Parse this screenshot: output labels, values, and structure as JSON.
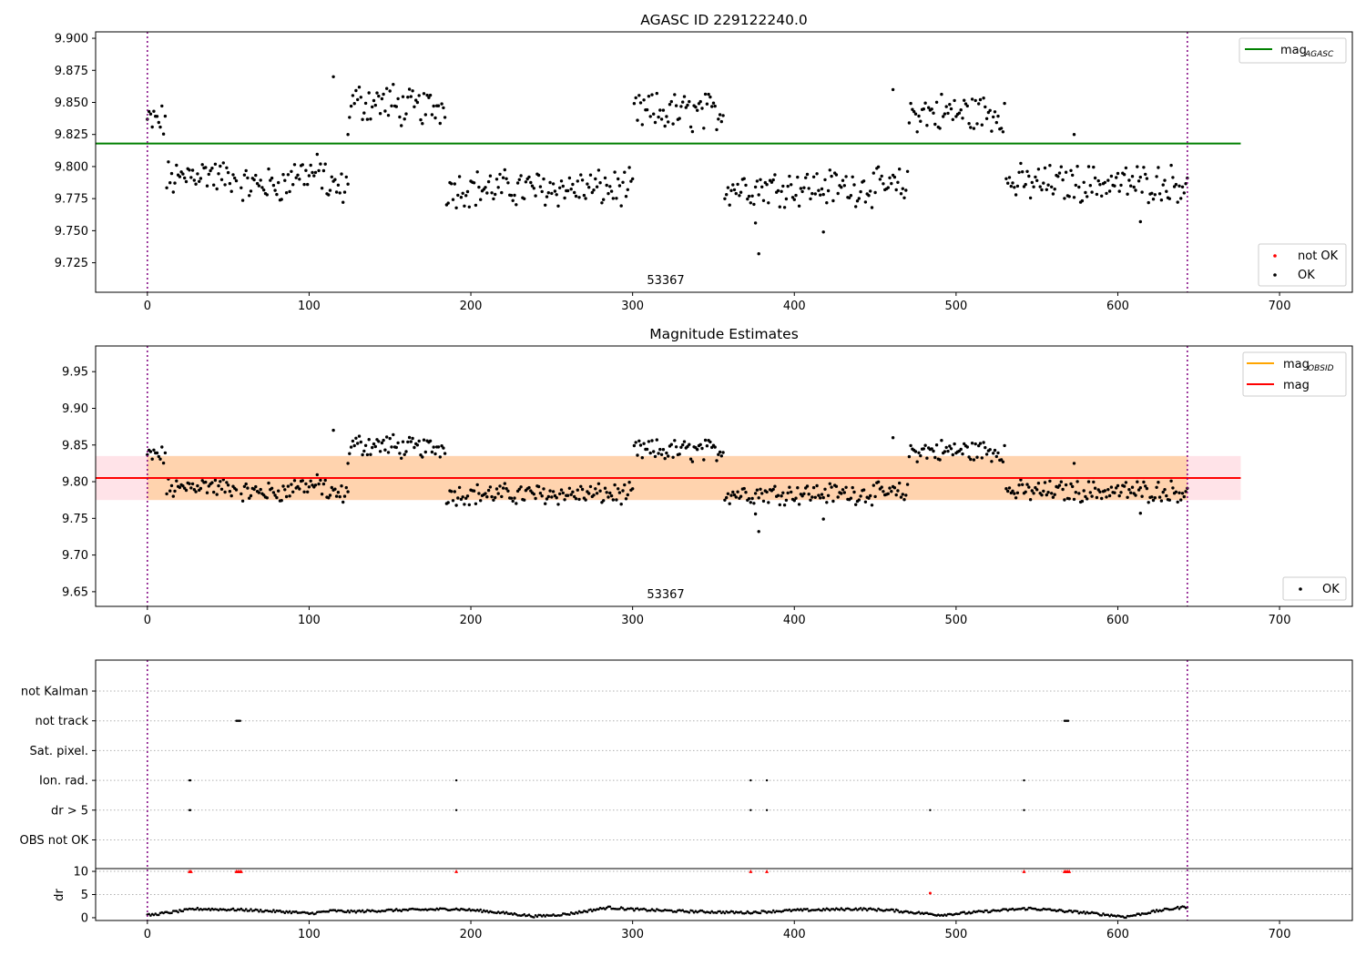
{
  "chart_data": [
    {
      "type": "scatter",
      "title": "AGASC ID 229122240.0",
      "xlim": [
        -32,
        745
      ],
      "ylim": [
        9.702,
        9.905
      ],
      "x_ticks": [
        0,
        100,
        200,
        300,
        400,
        500,
        600,
        700
      ],
      "y_ticks": [
        9.725,
        9.75,
        9.775,
        9.8,
        9.825,
        9.85,
        9.875,
        9.9
      ],
      "y_tick_labels": [
        "9.725",
        "9.750",
        "9.775",
        "9.800",
        "9.825",
        "9.850",
        "9.875",
        "9.900"
      ],
      "obsid_label": "53367",
      "obs_bounds": [
        0,
        643
      ],
      "series": [
        {
          "name": "mag_AGASC",
          "kind": "hline",
          "y": 9.818,
          "x_range": [
            -32,
            676
          ],
          "color": "#008000"
        },
        {
          "name": "not OK",
          "kind": "points",
          "color": "#ff0000",
          "points": []
        },
        {
          "name": "OK",
          "kind": "points",
          "color": "#000000",
          "segments": [
            {
              "x": [
                0,
                11
              ],
              "base": 9.835,
              "amp": 0.012
            },
            {
              "x": [
                12,
                24
              ],
              "base": 9.79,
              "amp": 0.012
            },
            {
              "x": [
                25,
                40
              ],
              "base": 9.795,
              "amp": 0.011
            },
            {
              "x": [
                41,
                55
              ],
              "base": 9.792,
              "amp": 0.011
            },
            {
              "x": [
                58,
                88
              ],
              "base": 9.786,
              "amp": 0.011
            },
            {
              "x": [
                89,
                110
              ],
              "base": 9.795,
              "amp": 0.012
            },
            {
              "x": [
                111,
                124
              ],
              "base": 9.782,
              "amp": 0.012
            },
            {
              "x": [
                125,
                152
              ],
              "base": 9.85,
              "amp": 0.013
            },
            {
              "x": [
                153,
                184
              ],
              "base": 9.846,
              "amp": 0.012
            },
            {
              "x": [
                185,
                300
              ],
              "base": 9.783,
              "amp": 0.012
            },
            {
              "x": [
                301,
                356
              ],
              "base": 9.842,
              "amp": 0.013
            },
            {
              "x": [
                357,
                470
              ],
              "base": 9.784,
              "amp": 0.012
            },
            {
              "x": [
                471,
                530
              ],
              "base": 9.842,
              "amp": 0.013
            },
            {
              "x": [
                531,
                643
              ],
              "base": 9.787,
              "amp": 0.012
            }
          ],
          "outliers": [
            [
              115,
              9.87
            ],
            [
              124,
              9.825
            ],
            [
              376,
              9.756
            ],
            [
              378,
              9.732
            ],
            [
              418,
              9.749
            ],
            [
              461,
              9.86
            ],
            [
              573,
              9.825
            ],
            [
              614,
              9.757
            ]
          ]
        }
      ],
      "legend_upper": [
        {
          "label": "mag",
          "sub": "AGASC",
          "color": "#008000"
        }
      ],
      "legend_lower": [
        {
          "label": "not OK",
          "color": "#ff0000"
        },
        {
          "label": "OK",
          "color": "#000000"
        }
      ]
    },
    {
      "type": "scatter",
      "title": "Magnitude Estimates",
      "xlim": [
        -32,
        745
      ],
      "ylim": [
        9.63,
        9.985
      ],
      "x_ticks": [
        0,
        100,
        200,
        300,
        400,
        500,
        600,
        700
      ],
      "y_ticks": [
        9.65,
        9.7,
        9.75,
        9.8,
        9.85,
        9.9,
        9.95
      ],
      "y_tick_labels": [
        "9.65",
        "9.70",
        "9.75",
        "9.80",
        "9.85",
        "9.90",
        "9.95"
      ],
      "obsid_label": "53367",
      "obs_bounds": [
        0,
        643
      ],
      "series": [
        {
          "name": "mag band",
          "kind": "band",
          "y_low": 9.775,
          "y_high": 9.835,
          "x_range": [
            -32,
            676
          ],
          "color": "#ffc0cb"
        },
        {
          "name": "mag_OBSID band",
          "kind": "band",
          "y_low": 9.775,
          "y_high": 9.835,
          "x_range": [
            0,
            643
          ],
          "color": "#ffa500"
        },
        {
          "name": "mag_OBSID",
          "kind": "hline",
          "y": 9.805,
          "x_range": [
            0,
            643
          ],
          "color": "#ffa500"
        },
        {
          "name": "mag",
          "kind": "hline",
          "y": 9.805,
          "x_range": [
            -32,
            676
          ],
          "color": "#ff0000"
        },
        {
          "name": "OK",
          "kind": "points",
          "color": "#000000",
          "same_as_panel": 0
        }
      ],
      "legend_upper": [
        {
          "label": "mag",
          "sub": "OBSID",
          "color": "#ffa500"
        },
        {
          "label": "mag",
          "sub": "",
          "color": "#ff0000"
        }
      ],
      "legend_lower": [
        {
          "label": "OK",
          "color": "#000000"
        }
      ]
    },
    {
      "type": "scatter",
      "title": "",
      "xlim": [
        -32,
        745
      ],
      "x_ticks": [
        0,
        100,
        200,
        300,
        400,
        500,
        600,
        700
      ],
      "obs_bounds": [
        0,
        643
      ],
      "flag_rows": [
        "not Kalman",
        "not track",
        "Sat. pixel.",
        "Ion. rad.",
        "dr > 5",
        "OBS not OK"
      ],
      "flags": {
        "not Kalman": [],
        "not track": [
          [
            55,
            58
          ],
          [
            567,
            570
          ]
        ],
        "Sat. pixel.": [],
        "Ion. rad.": [
          [
            26,
            27
          ],
          [
            191,
            191
          ],
          [
            373,
            373
          ],
          [
            383,
            383
          ],
          [
            542,
            542
          ]
        ],
        "dr > 5": [
          [
            26,
            27
          ],
          [
            191,
            191
          ],
          [
            373,
            373
          ],
          [
            383,
            383
          ],
          [
            484,
            484
          ],
          [
            542,
            542
          ]
        ],
        "OBS not OK": []
      },
      "dr": {
        "ylabel": "dr",
        "ylim": [
          -0.6,
          10.6
        ],
        "y_ticks": [
          0,
          5,
          10
        ],
        "y_tick_labels": [
          "0",
          "5",
          "10"
        ],
        "clip_value": 10,
        "clipped_x": [
          26,
          27,
          55,
          56,
          57,
          58,
          191,
          373,
          383,
          542,
          567,
          568,
          569,
          570
        ],
        "outlier_points": [
          [
            484,
            5.3
          ]
        ],
        "trend_knots": [
          [
            0,
            0.5
          ],
          [
            15,
            1.2
          ],
          [
            30,
            1.9
          ],
          [
            60,
            1.7
          ],
          [
            90,
            1.2
          ],
          [
            100,
            0.9
          ],
          [
            115,
            1.5
          ],
          [
            125,
            1.3
          ],
          [
            150,
            1.6
          ],
          [
            180,
            1.8
          ],
          [
            190,
            1.9
          ],
          [
            210,
            1.4
          ],
          [
            240,
            0.3
          ],
          [
            260,
            0.8
          ],
          [
            285,
            2.2
          ],
          [
            300,
            1.8
          ],
          [
            330,
            1.4
          ],
          [
            370,
            1.1
          ],
          [
            400,
            1.6
          ],
          [
            440,
            1.9
          ],
          [
            460,
            1.6
          ],
          [
            490,
            0.6
          ],
          [
            520,
            1.4
          ],
          [
            545,
            2.0
          ],
          [
            580,
            1.1
          ],
          [
            605,
            0.2
          ],
          [
            625,
            1.5
          ],
          [
            643,
            2.4
          ]
        ]
      }
    }
  ]
}
